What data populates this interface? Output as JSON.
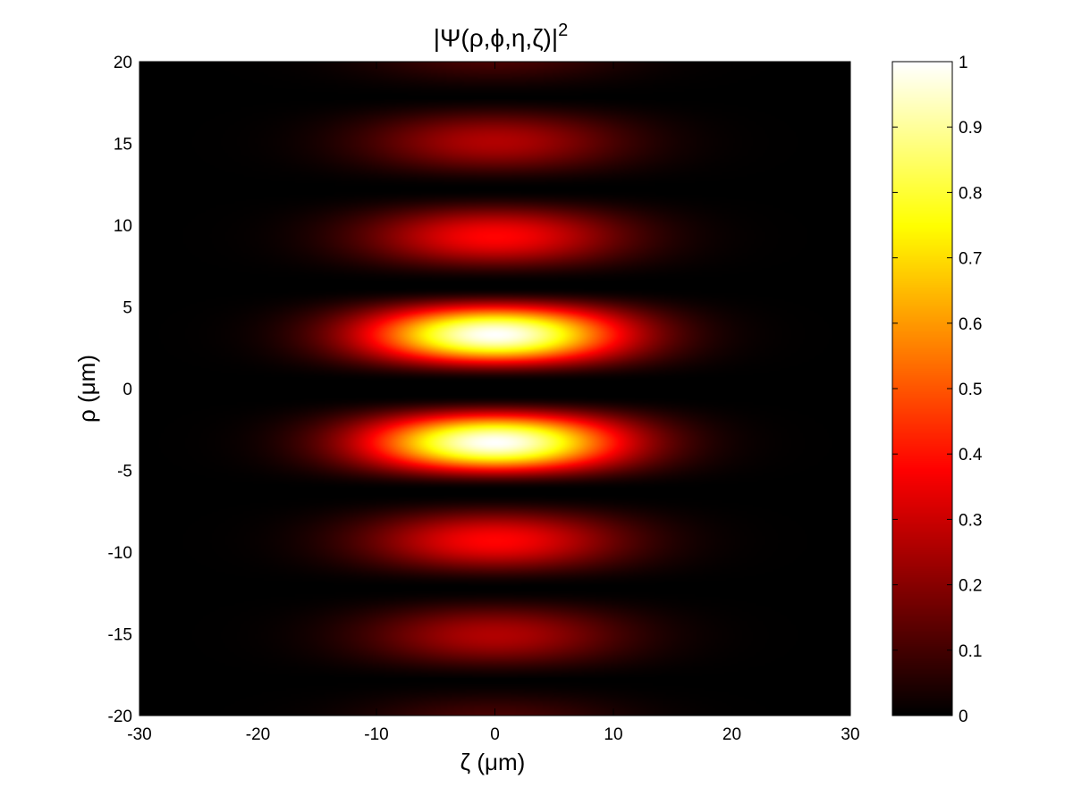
{
  "chart_data": {
    "type": "heatmap",
    "title": "|Ψ(ρ,ϕ,η,ζ)|",
    "title_superscript": "2",
    "xlabel": "ζ (μm)",
    "ylabel": "ρ (μm)",
    "xlim": [
      -30,
      30
    ],
    "ylim": [
      -20,
      20
    ],
    "xticks": [
      -30,
      -20,
      -10,
      0,
      10,
      20,
      30
    ],
    "yticks": [
      -20,
      -15,
      -10,
      -5,
      0,
      5,
      10,
      15,
      20
    ],
    "colormap": "hot",
    "colorbar": {
      "range": [
        0,
        1
      ],
      "ticks": [
        0,
        0.1,
        0.2,
        0.3,
        0.4,
        0.5,
        0.6,
        0.7,
        0.8,
        0.9,
        1
      ]
    },
    "intensity_model": {
      "description": "standing wave along rho times Gaussian envelope along zeta",
      "lobes": [
        {
          "rho_center": 3.3,
          "peak": 1.0,
          "zeta_halfwidth": 7.5
        },
        {
          "rho_center": -3.3,
          "peak": 1.0,
          "zeta_halfwidth": 7.5
        },
        {
          "rho_center": 9.3,
          "peak": 0.38,
          "zeta_halfwidth": 7.5
        },
        {
          "rho_center": -9.3,
          "peak": 0.38,
          "zeta_halfwidth": 7.5
        },
        {
          "rho_center": 15.1,
          "peak": 0.26,
          "zeta_halfwidth": 7.5
        },
        {
          "rho_center": -15.1,
          "peak": 0.26,
          "zeta_halfwidth": 7.5
        },
        {
          "rho_center": 20.6,
          "peak": 0.12,
          "zeta_halfwidth": 7.5
        },
        {
          "rho_center": -20.6,
          "peak": 0.12,
          "zeta_halfwidth": 7.5
        }
      ]
    }
  }
}
